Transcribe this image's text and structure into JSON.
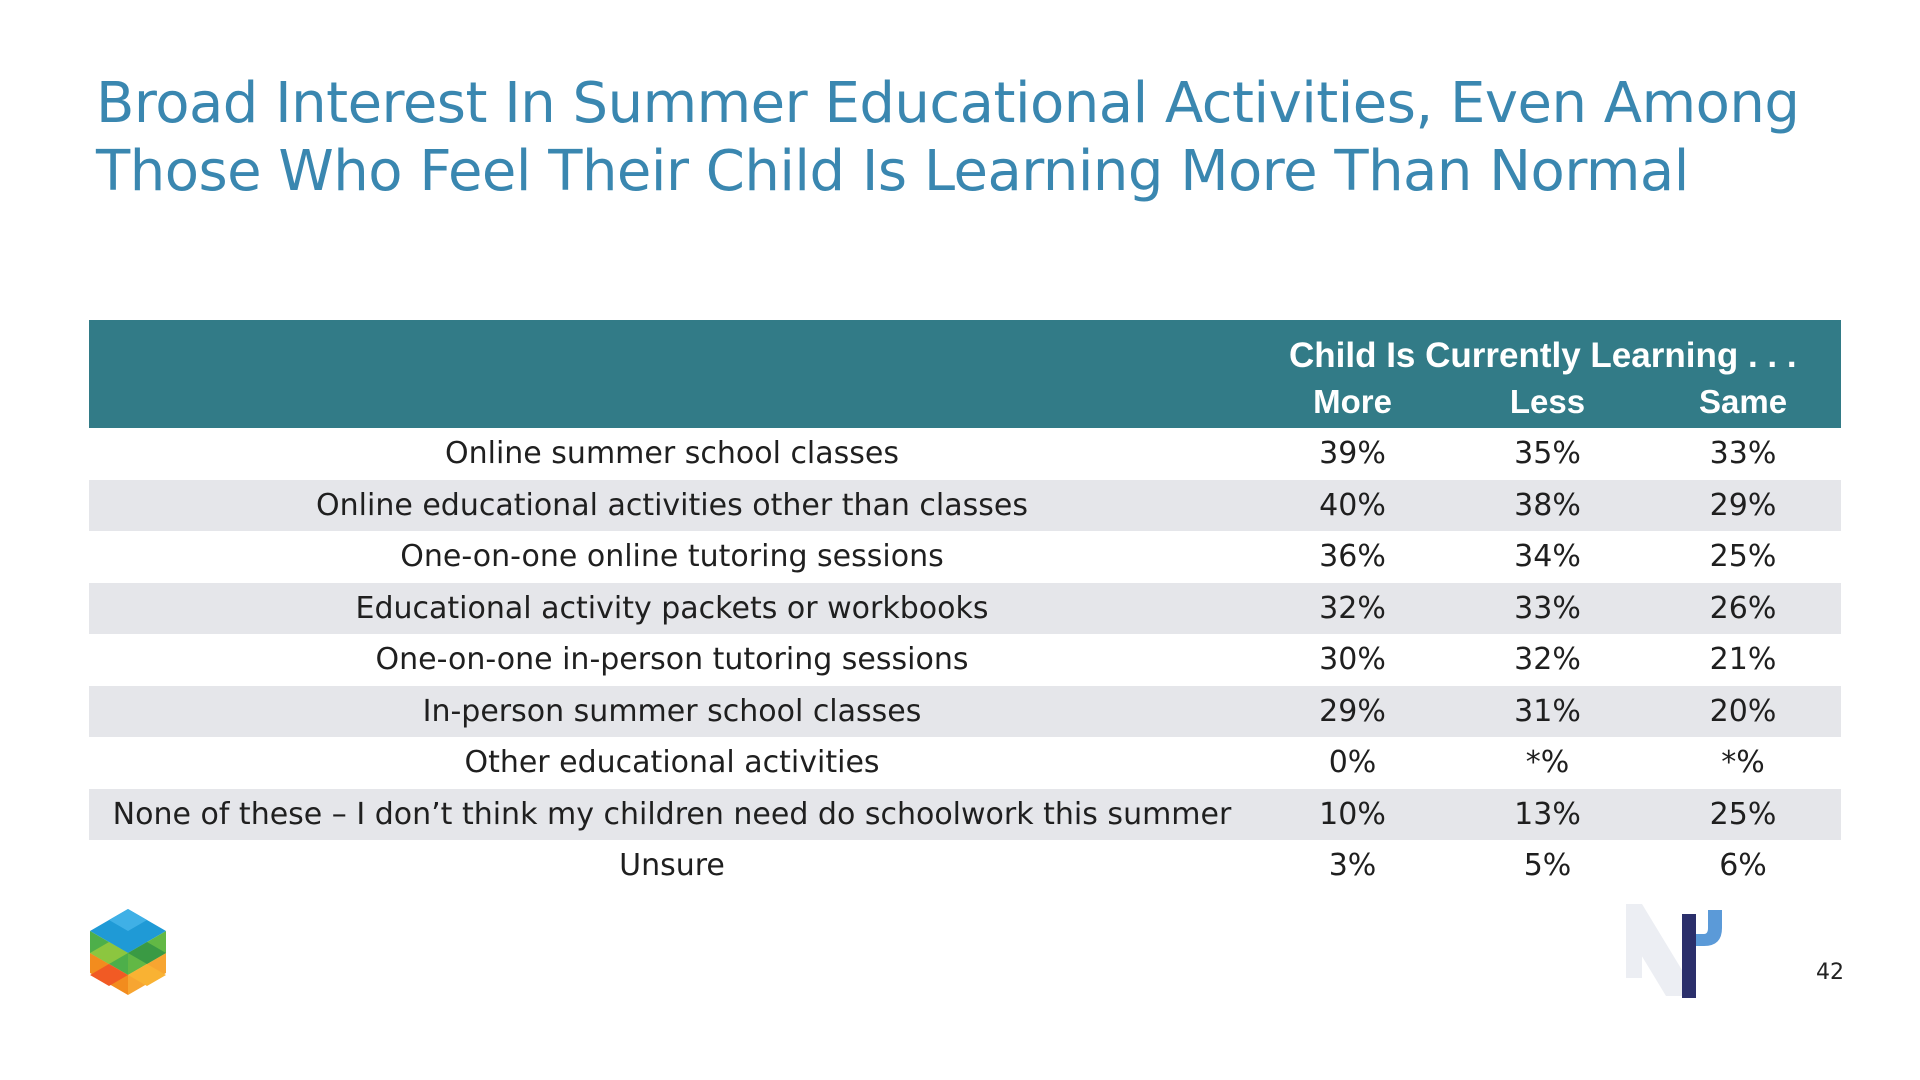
{
  "slide": {
    "title_line1": "Broad Interest In Summer Educational Activities, Even Among",
    "title_line2": "Those Who Feel Their Child Is Learning More Than Normal",
    "page_number": "42",
    "title_color": "#3a87b0",
    "header_color": "#327b87",
    "stripe_color": "#e5e6ea"
  },
  "table": {
    "group_header": "Child Is Currently Learning . . .",
    "columns": [
      "More",
      "Less",
      "Same"
    ],
    "rows": [
      {
        "label": "Online summer school classes",
        "values": [
          "39%",
          "35%",
          "33%"
        ]
      },
      {
        "label": "Online educational activities other than classes",
        "values": [
          "40%",
          "38%",
          "29%"
        ]
      },
      {
        "label": "One-on-one online tutoring sessions",
        "values": [
          "36%",
          "34%",
          "25%"
        ]
      },
      {
        "label": "Educational activity packets or workbooks",
        "values": [
          "32%",
          "33%",
          "26%"
        ]
      },
      {
        "label": "One-on-one in-person tutoring sessions",
        "values": [
          "30%",
          "32%",
          "21%"
        ]
      },
      {
        "label": "In-person summer school classes",
        "values": [
          "29%",
          "31%",
          "20%"
        ]
      },
      {
        "label": "Other educational activities",
        "values": [
          "0%",
          "*%",
          "*%"
        ]
      },
      {
        "label": "None of these – I don’t think my children need do schoolwork this summer",
        "values": [
          "10%",
          "13%",
          "25%"
        ]
      },
      {
        "label": "Unsure",
        "values": [
          "3%",
          "5%",
          "6%"
        ]
      }
    ]
  },
  "logos": {
    "left": "cube-logo-icon",
    "right": "np-logo-icon"
  }
}
